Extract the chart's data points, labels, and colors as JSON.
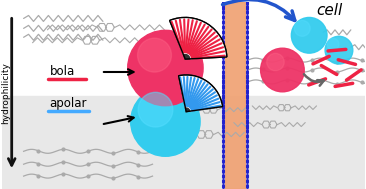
{
  "fig_width": 3.66,
  "fig_height": 1.89,
  "dpi": 100,
  "bg_top": "#ffffff",
  "bg_bottom": "#e8e8e8",
  "text_hydrophilicity": "hydrophilicity",
  "text_apolar": "apolar",
  "text_bola": "bola",
  "text_cell": "cell",
  "apolar_line_color": "#44aaff",
  "bola_line_color": "#ee2244",
  "cyan_sphere_color": "#33ccee",
  "cyan_sphere_color2": "#55ddff",
  "pink_sphere_color": "#ee3366",
  "membrane_fill": "#f0a070",
  "membrane_dots": "#2222cc",
  "fan_blue": "#3399ee",
  "fan_red": "#ee2244",
  "fan_dark_bg": "#555555",
  "arrow_color": "#111111",
  "cell_arrow_color": "#2255cc",
  "disassembly_arrow_color": "#666666",
  "molecule_color": "#aaaaaa",
  "wavy_color": "#aaaaaa"
}
